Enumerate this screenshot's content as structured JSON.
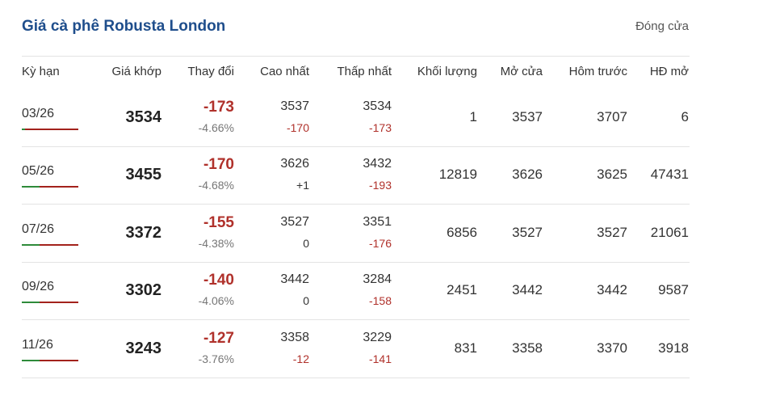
{
  "header": {
    "title": "Giá cà phê Robusta London",
    "status": "Đóng cửa"
  },
  "table": {
    "columns": [
      "Kỳ hạn",
      "Giá khớp",
      "Thay đổi",
      "Cao nhất",
      "Thấp nhất",
      "Khối lượng",
      "Mở cửa",
      "Hôm trước",
      "HĐ mở"
    ],
    "rows": [
      {
        "term": "03/26",
        "price": "3534",
        "change": "-173",
        "change_pct": "-4.66%",
        "high": "3537",
        "high_change": "-170",
        "low": "3534",
        "low_change": "-173",
        "volume": "1",
        "open": "3537",
        "prev_close": "3707",
        "open_interest": "6"
      },
      {
        "term": "05/26",
        "price": "3455",
        "change": "-170",
        "change_pct": "-4.68%",
        "high": "3626",
        "high_change": "+1",
        "low": "3432",
        "low_change": "-193",
        "volume": "12819",
        "open": "3626",
        "prev_close": "3625",
        "open_interest": "47431"
      },
      {
        "term": "07/26",
        "price": "3372",
        "change": "-155",
        "change_pct": "-4.38%",
        "high": "3527",
        "high_change": "0",
        "low": "3351",
        "low_change": "-176",
        "volume": "6856",
        "open": "3527",
        "prev_close": "3527",
        "open_interest": "21061"
      },
      {
        "term": "09/26",
        "price": "3302",
        "change": "-140",
        "change_pct": "-4.06%",
        "high": "3442",
        "high_change": "0",
        "low": "3284",
        "low_change": "-158",
        "volume": "2451",
        "open": "3442",
        "prev_close": "3442",
        "open_interest": "9587"
      },
      {
        "term": "11/26",
        "price": "3243",
        "change": "-127",
        "change_pct": "-3.76%",
        "high": "3358",
        "high_change": "-12",
        "low": "3229",
        "low_change": "-141",
        "volume": "831",
        "open": "3358",
        "prev_close": "3370",
        "open_interest": "3918"
      }
    ]
  }
}
